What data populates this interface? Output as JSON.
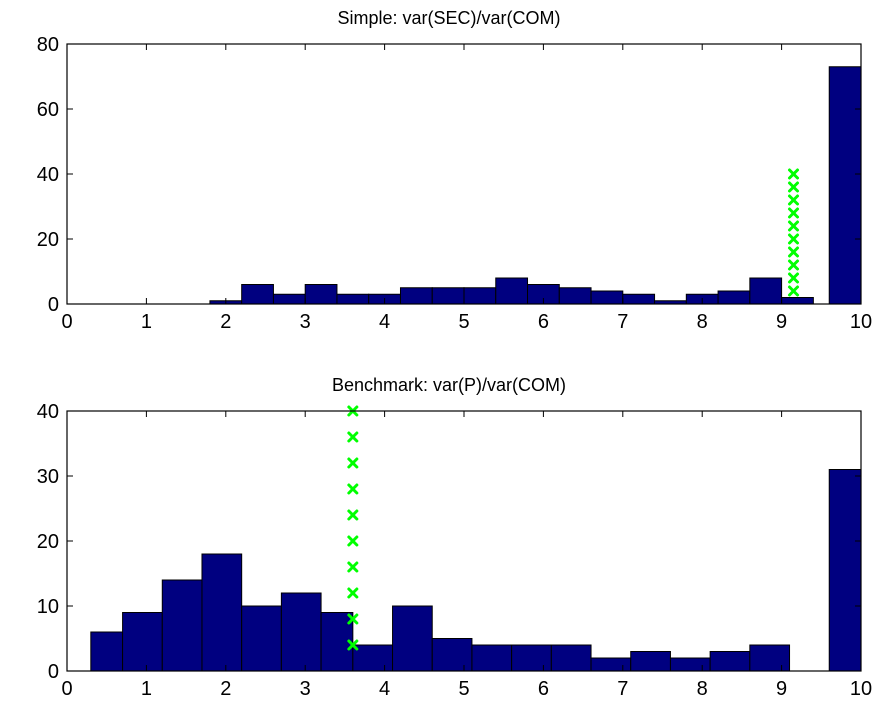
{
  "chart_data": [
    {
      "type": "bar",
      "title": "Simple: var(SEC)/var(COM)",
      "xlabel": "",
      "ylabel": "",
      "xlim": [
        0,
        10
      ],
      "ylim": [
        0,
        80
      ],
      "xticks": [
        "0",
        "1",
        "2",
        "3",
        "4",
        "5",
        "6",
        "7",
        "8",
        "9",
        "10"
      ],
      "yticks": [
        "0",
        "20",
        "40",
        "60",
        "80"
      ],
      "bars": [
        {
          "x0": 1.8,
          "x1": 2.2,
          "value": 1
        },
        {
          "x0": 2.2,
          "x1": 2.6,
          "value": 6
        },
        {
          "x0": 2.6,
          "x1": 3.0,
          "value": 3
        },
        {
          "x0": 3.0,
          "x1": 3.4,
          "value": 6
        },
        {
          "x0": 3.4,
          "x1": 3.8,
          "value": 3
        },
        {
          "x0": 3.8,
          "x1": 4.2,
          "value": 3
        },
        {
          "x0": 4.2,
          "x1": 4.6,
          "value": 5
        },
        {
          "x0": 4.6,
          "x1": 5.0,
          "value": 5
        },
        {
          "x0": 5.0,
          "x1": 5.4,
          "value": 5
        },
        {
          "x0": 5.4,
          "x1": 5.8,
          "value": 8
        },
        {
          "x0": 5.8,
          "x1": 6.2,
          "value": 6
        },
        {
          "x0": 6.2,
          "x1": 6.6,
          "value": 5
        },
        {
          "x0": 6.6,
          "x1": 7.0,
          "value": 4
        },
        {
          "x0": 7.0,
          "x1": 7.4,
          "value": 3
        },
        {
          "x0": 7.4,
          "x1": 7.8,
          "value": 1
        },
        {
          "x0": 7.8,
          "x1": 8.2,
          "value": 3
        },
        {
          "x0": 8.2,
          "x1": 8.6,
          "value": 4
        },
        {
          "x0": 8.6,
          "x1": 9.0,
          "value": 8
        },
        {
          "x0": 9.0,
          "x1": 9.4,
          "value": 2
        },
        {
          "x0": 9.6,
          "x1": 10.0,
          "value": 73
        }
      ],
      "marker_line": {
        "x": 9.15,
        "y": [
          4,
          8,
          12,
          16,
          20,
          24,
          28,
          32,
          36,
          40
        ],
        "color": "#00ff00",
        "symbol": "x"
      },
      "bar_color": "#000080"
    },
    {
      "type": "bar",
      "title": "Benchmark: var(P)/var(COM)",
      "xlabel": "",
      "ylabel": "",
      "xlim": [
        0,
        10
      ],
      "ylim": [
        0,
        40
      ],
      "xticks": [
        "0",
        "1",
        "2",
        "3",
        "4",
        "5",
        "6",
        "7",
        "8",
        "9",
        "10"
      ],
      "yticks": [
        "0",
        "10",
        "20",
        "30",
        "40"
      ],
      "bars": [
        {
          "x0": 0.3,
          "x1": 0.7,
          "value": 6
        },
        {
          "x0": 0.7,
          "x1": 1.2,
          "value": 9
        },
        {
          "x0": 1.2,
          "x1": 1.7,
          "value": 14
        },
        {
          "x0": 1.7,
          "x1": 2.2,
          "value": 18
        },
        {
          "x0": 2.2,
          "x1": 2.7,
          "value": 10
        },
        {
          "x0": 2.7,
          "x1": 3.2,
          "value": 12
        },
        {
          "x0": 3.2,
          "x1": 3.6,
          "value": 9
        },
        {
          "x0": 3.6,
          "x1": 4.1,
          "value": 4
        },
        {
          "x0": 4.1,
          "x1": 4.6,
          "value": 10
        },
        {
          "x0": 4.6,
          "x1": 5.1,
          "value": 5
        },
        {
          "x0": 5.1,
          "x1": 5.6,
          "value": 4
        },
        {
          "x0": 5.6,
          "x1": 6.1,
          "value": 4
        },
        {
          "x0": 6.1,
          "x1": 6.6,
          "value": 4
        },
        {
          "x0": 6.6,
          "x1": 7.1,
          "value": 2
        },
        {
          "x0": 7.1,
          "x1": 7.6,
          "value": 3
        },
        {
          "x0": 7.6,
          "x1": 8.1,
          "value": 2
        },
        {
          "x0": 8.1,
          "x1": 8.6,
          "value": 3
        },
        {
          "x0": 8.6,
          "x1": 9.1,
          "value": 4
        },
        {
          "x0": 9.6,
          "x1": 10.0,
          "value": 31
        }
      ],
      "marker_line": {
        "x": 3.6,
        "y": [
          4,
          8,
          12,
          16,
          20,
          24,
          28,
          32,
          36,
          40
        ],
        "color": "#00ff00",
        "symbol": "x"
      },
      "bar_color": "#000080"
    }
  ]
}
